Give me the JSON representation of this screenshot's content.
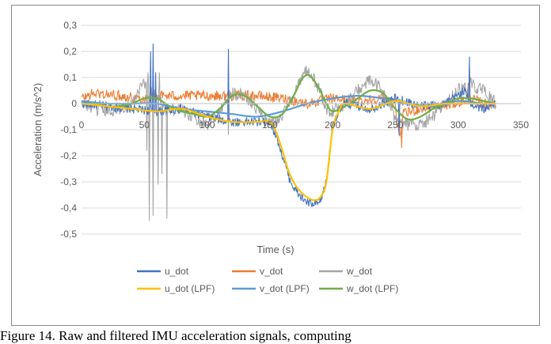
{
  "chart_data": {
    "type": "line",
    "title": "",
    "xlabel": "Time (s)",
    "ylabel": "Acceleration (m/s^2)",
    "xlim": [
      0,
      350
    ],
    "ylim": [
      -0.5,
      0.3
    ],
    "x_ticks": [
      "0",
      "50",
      "100",
      "150",
      "200",
      "250",
      "300",
      "350"
    ],
    "y_ticks": [
      "0,3",
      "0,2",
      "0,1",
      "0",
      "-0,1",
      "-0,2",
      "-0,3",
      "-0,4",
      "-0,5"
    ],
    "grid": "horizontal",
    "legend_position": "bottom",
    "series": [
      {
        "name": "u_dot",
        "color": "#4472C4",
        "x": [
          0,
          20,
          40,
          60,
          80,
          100,
          120,
          140,
          150,
          155,
          160,
          165,
          170,
          175,
          180,
          185,
          190,
          195,
          200,
          205,
          210,
          230,
          250,
          270,
          290,
          305,
          310,
          320,
          330
        ],
        "y": [
          0.0,
          -0.01,
          -0.02,
          -0.03,
          -0.02,
          -0.05,
          -0.07,
          -0.07,
          -0.07,
          -0.12,
          -0.2,
          -0.28,
          -0.33,
          -0.36,
          -0.38,
          -0.39,
          -0.38,
          -0.3,
          -0.08,
          -0.03,
          0.0,
          -0.02,
          0.02,
          -0.01,
          0.0,
          0.05,
          0.0,
          -0.02,
          0.0
        ],
        "noise": 0.018,
        "spikes": [
          [
            57,
            0.23
          ],
          [
            55,
            0.2
          ],
          [
            59,
            0.12
          ],
          [
            117,
            0.21
          ],
          [
            253,
            -0.12
          ],
          [
            309,
            0.18
          ]
        ]
      },
      {
        "name": "v_dot",
        "color": "#ED7D31",
        "x": [
          0,
          10,
          30,
          50,
          60,
          80,
          100,
          120,
          140,
          160,
          180,
          200,
          220,
          240,
          250,
          253,
          256,
          270,
          290,
          310,
          320,
          330
        ],
        "y": [
          0.02,
          0.04,
          0.03,
          0.02,
          0.03,
          0.03,
          0.03,
          0.03,
          0.03,
          0.02,
          0.0,
          0.02,
          0.01,
          0.02,
          0.0,
          -0.14,
          -0.04,
          -0.02,
          -0.01,
          0.02,
          0.0,
          0.0
        ],
        "noise": 0.02,
        "spikes": [
          [
            255,
            -0.17
          ],
          [
            308,
            0.08
          ]
        ]
      },
      {
        "name": "w_dot",
        "color": "#A5A5A5",
        "x": [
          0,
          10,
          20,
          30,
          40,
          50,
          60,
          70,
          80,
          90,
          100,
          110,
          120,
          130,
          140,
          150,
          160,
          170,
          180,
          190,
          195,
          200,
          210,
          220,
          230,
          240,
          250,
          260,
          270,
          280,
          290,
          300,
          310,
          320,
          330
        ],
        "y": [
          0.0,
          -0.02,
          -0.03,
          -0.02,
          0.0,
          0.08,
          0.03,
          -0.02,
          -0.03,
          -0.05,
          -0.08,
          -0.02,
          0.04,
          0.03,
          -0.02,
          -0.08,
          -0.05,
          0.05,
          0.13,
          0.05,
          -0.02,
          -0.03,
          0.0,
          0.05,
          0.09,
          0.05,
          -0.06,
          -0.08,
          -0.08,
          -0.05,
          0.0,
          0.05,
          0.07,
          0.05,
          0.0
        ],
        "noise": 0.025,
        "spikes": [
          [
            52,
            -0.18
          ],
          [
            54,
            -0.45
          ],
          [
            57,
            -0.43
          ],
          [
            61,
            -0.31
          ],
          [
            64,
            -0.27
          ],
          [
            68,
            -0.44
          ],
          [
            53,
            0.12
          ],
          [
            62,
            0.12
          ],
          [
            117,
            -0.12
          ],
          [
            118,
            0.05
          ],
          [
            178,
            0.14
          ],
          [
            310,
            0.1
          ]
        ]
      },
      {
        "name": "u_dot (LPF)",
        "color": "#FFC000",
        "x": [
          0,
          20,
          40,
          60,
          80,
          100,
          120,
          140,
          150,
          155,
          160,
          165,
          170,
          175,
          180,
          185,
          190,
          195,
          200,
          205,
          210,
          230,
          250,
          270,
          290,
          310,
          330
        ],
        "y": [
          0.0,
          -0.01,
          -0.02,
          -0.03,
          -0.02,
          -0.05,
          -0.07,
          -0.07,
          -0.07,
          -0.11,
          -0.18,
          -0.26,
          -0.31,
          -0.34,
          -0.36,
          -0.37,
          -0.36,
          -0.3,
          -0.1,
          -0.03,
          0.0,
          -0.02,
          0.01,
          -0.01,
          0.0,
          0.0,
          0.0
        ]
      },
      {
        "name": "v_dot (LPF)",
        "color": "#5B9BD5",
        "x": [
          0,
          20,
          40,
          60,
          80,
          100,
          120,
          140,
          160,
          180,
          200,
          220,
          240,
          260,
          280,
          300,
          320,
          330
        ],
        "y": [
          0.01,
          0.0,
          0.0,
          0.0,
          -0.02,
          -0.03,
          -0.04,
          -0.05,
          -0.03,
          0.0,
          0.02,
          0.03,
          0.02,
          0.0,
          -0.01,
          0.01,
          0.0,
          0.0
        ]
      },
      {
        "name": "w_dot (LPF)",
        "color": "#70AD47",
        "x": [
          0,
          10,
          20,
          30,
          40,
          50,
          60,
          70,
          80,
          90,
          100,
          110,
          120,
          130,
          140,
          150,
          160,
          170,
          175,
          180,
          185,
          190,
          195,
          200,
          210,
          220,
          230,
          240,
          250,
          260,
          270,
          280,
          290,
          300,
          310,
          320,
          330
        ],
        "y": [
          0.0,
          0.0,
          -0.01,
          -0.01,
          0.0,
          0.02,
          0.02,
          -0.01,
          -0.03,
          -0.04,
          -0.05,
          -0.02,
          0.03,
          0.03,
          -0.01,
          -0.05,
          -0.04,
          0.04,
          0.09,
          0.11,
          0.09,
          0.05,
          0.0,
          -0.03,
          -0.01,
          0.02,
          0.05,
          0.04,
          -0.02,
          -0.06,
          -0.05,
          -0.02,
          0.0,
          0.02,
          0.02,
          0.01,
          0.0
        ]
      }
    ]
  },
  "caption": "Figure 14. Raw and filtered IMU acceleration signals, computing"
}
